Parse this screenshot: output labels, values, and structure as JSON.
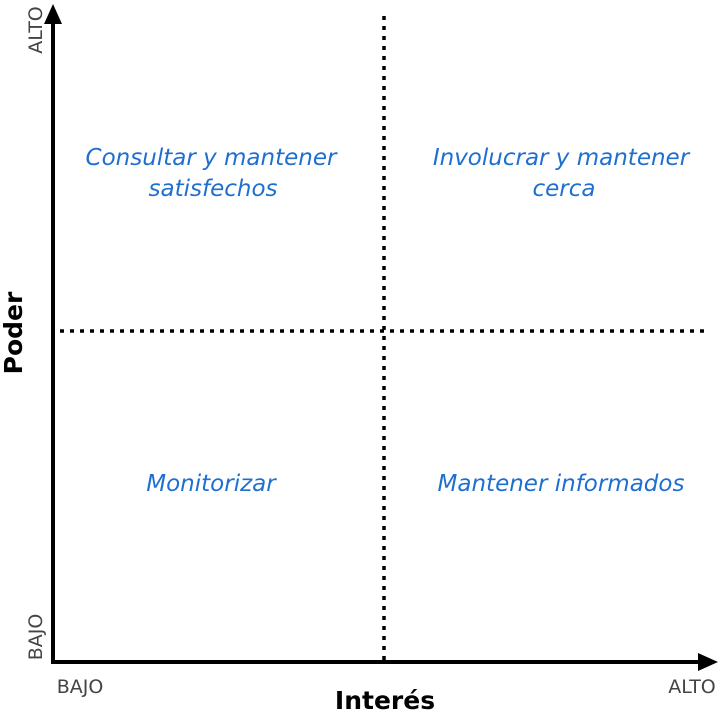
{
  "x_axis": {
    "title": "Interés",
    "low_label": "BAJO",
    "high_label": "ALTO"
  },
  "y_axis": {
    "title": "Poder",
    "low_label": "BAJO",
    "high_label": "ALTO"
  },
  "quadrants": {
    "top_left": {
      "line1": "Consultar y mantener",
      "line2": "satisfechos"
    },
    "top_right": {
      "line1": "Involucrar y mantener",
      "line2": "cerca"
    },
    "bottom_left": {
      "line1": "Monitorizar"
    },
    "bottom_right": {
      "line1": "Mantener informados"
    }
  },
  "colors": {
    "quadrant_text": "#1f6fd0",
    "axis": "#000000",
    "tick_text": "#444444"
  }
}
